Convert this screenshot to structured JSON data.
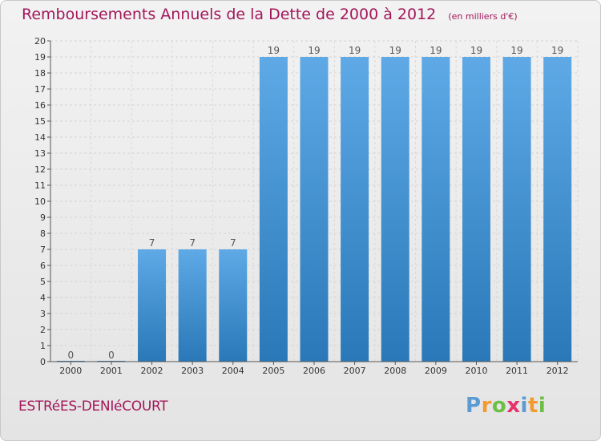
{
  "header": {
    "title": "Remboursements Annuels de la Dette de 2000 à 2012",
    "unit": "(en milliers d'€)"
  },
  "footer": {
    "commune": "ESTRéES-DENIéCOURT",
    "logo": "Proxiti"
  },
  "colors": {
    "title": "#a3175a",
    "bar_light": "#5ea9e6",
    "bar_dark": "#2a78b8"
  },
  "chart_data": {
    "type": "bar",
    "categories": [
      "2000",
      "2001",
      "2002",
      "2003",
      "2004",
      "2005",
      "2006",
      "2007",
      "2008",
      "2009",
      "2010",
      "2011",
      "2012"
    ],
    "values": [
      0,
      0,
      7,
      7,
      7,
      19,
      19,
      19,
      19,
      19,
      19,
      19,
      19
    ],
    "data_labels": [
      "0",
      "0",
      "7",
      "7",
      "7",
      "19",
      "19",
      "19",
      "19",
      "19",
      "19",
      "19",
      "19"
    ],
    "yticks": [
      0,
      1,
      2,
      3,
      4,
      5,
      6,
      7,
      8,
      9,
      10,
      11,
      12,
      13,
      14,
      15,
      16,
      17,
      18,
      19,
      20
    ],
    "ylim": [
      0,
      20
    ],
    "grid": true,
    "title": "Remboursements Annuels de la Dette de 2000 à 2012",
    "xlabel": "",
    "ylabel": ""
  }
}
